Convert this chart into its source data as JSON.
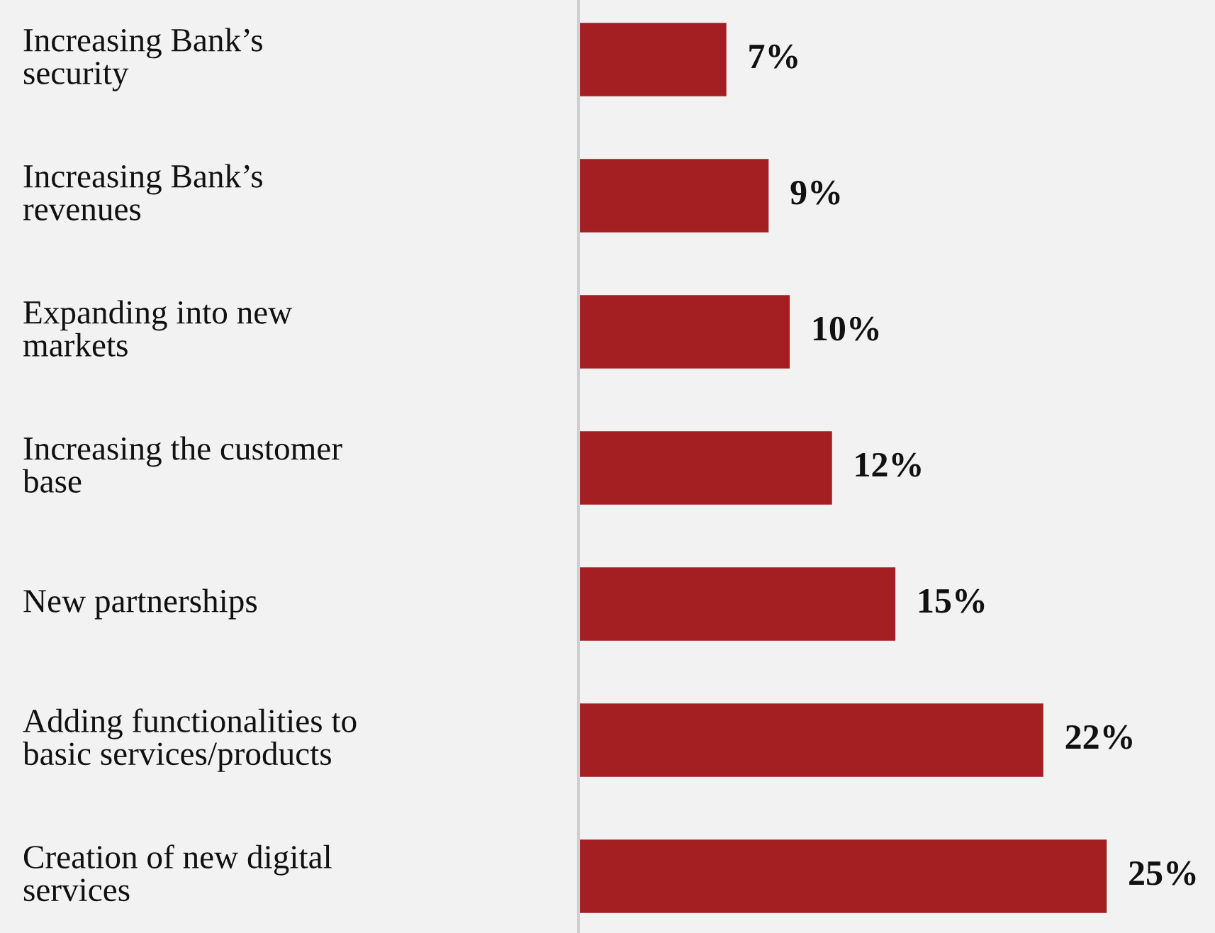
{
  "chart_data": {
    "type": "bar",
    "orientation": "horizontal",
    "categories": [
      "Increasing Bank’s\nsecurity",
      "Increasing Bank’s\nrevenues",
      "Expanding into new\nmarkets",
      "Increasing the customer\nbase",
      "New partnerships",
      "Adding functionalities to\nbasic services/products",
      "Creation of new digital\nservices"
    ],
    "values": [
      7,
      9,
      10,
      12,
      15,
      22,
      25
    ],
    "value_labels": [
      "7%",
      "9%",
      "10%",
      "12%",
      "15%",
      "22%",
      "25%"
    ],
    "color": "#a31f22",
    "tick_labels": "y"
  }
}
